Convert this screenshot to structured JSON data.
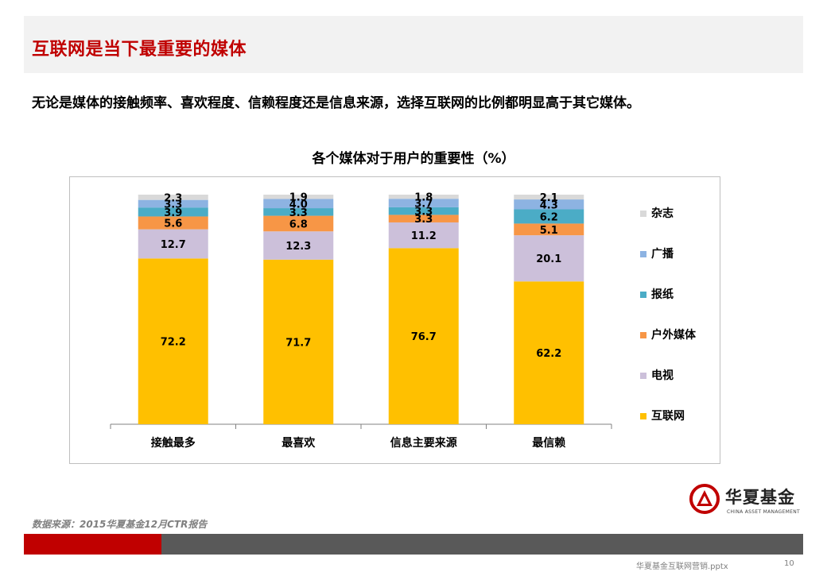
{
  "slide": {
    "title": "互联网是当下最重要的媒体",
    "subtitle": "无论是媒体的接触频率、喜欢程度、信赖程度还是信息来源，选择互联网的比例都明显高于其它媒体。",
    "source": "数据来源：2015华夏基金12月CTR报告",
    "footer_file": "华夏基金互联网营销.pptx",
    "page_number": "10"
  },
  "logo": {
    "name_cn": "华夏基金",
    "name_en": "CHINA ASSET MANAGEMENT"
  },
  "colors": {
    "accent": "#c00000",
    "footer_gray": "#595959"
  },
  "chart_data": {
    "type": "bar",
    "stacked": true,
    "title": "各个媒体对于用户的重要性（%）",
    "categories": [
      "接触最多",
      "最喜欢",
      "信息主要来源",
      "最信赖"
    ],
    "ylim": [
      0,
      100
    ],
    "grid": false,
    "legend_position": "right",
    "series": [
      {
        "name": "互联网",
        "color": "#ffc000",
        "values": [
          72.2,
          71.7,
          76.7,
          62.2
        ]
      },
      {
        "name": "电视",
        "color": "#ccc0da",
        "values": [
          12.7,
          12.3,
          11.2,
          20.1
        ]
      },
      {
        "name": "户外媒体",
        "color": "#f79646",
        "values": [
          5.6,
          6.8,
          3.3,
          5.1
        ]
      },
      {
        "name": "报纸",
        "color": "#4bacc6",
        "values": [
          3.9,
          3.3,
          3.3,
          6.2
        ]
      },
      {
        "name": "广播",
        "color": "#8db3e2",
        "values": [
          3.3,
          4.0,
          3.7,
          4.3
        ]
      },
      {
        "name": "杂志",
        "color": "#d9d9d9",
        "values": [
          2.3,
          1.9,
          1.8,
          2.1
        ]
      }
    ]
  }
}
